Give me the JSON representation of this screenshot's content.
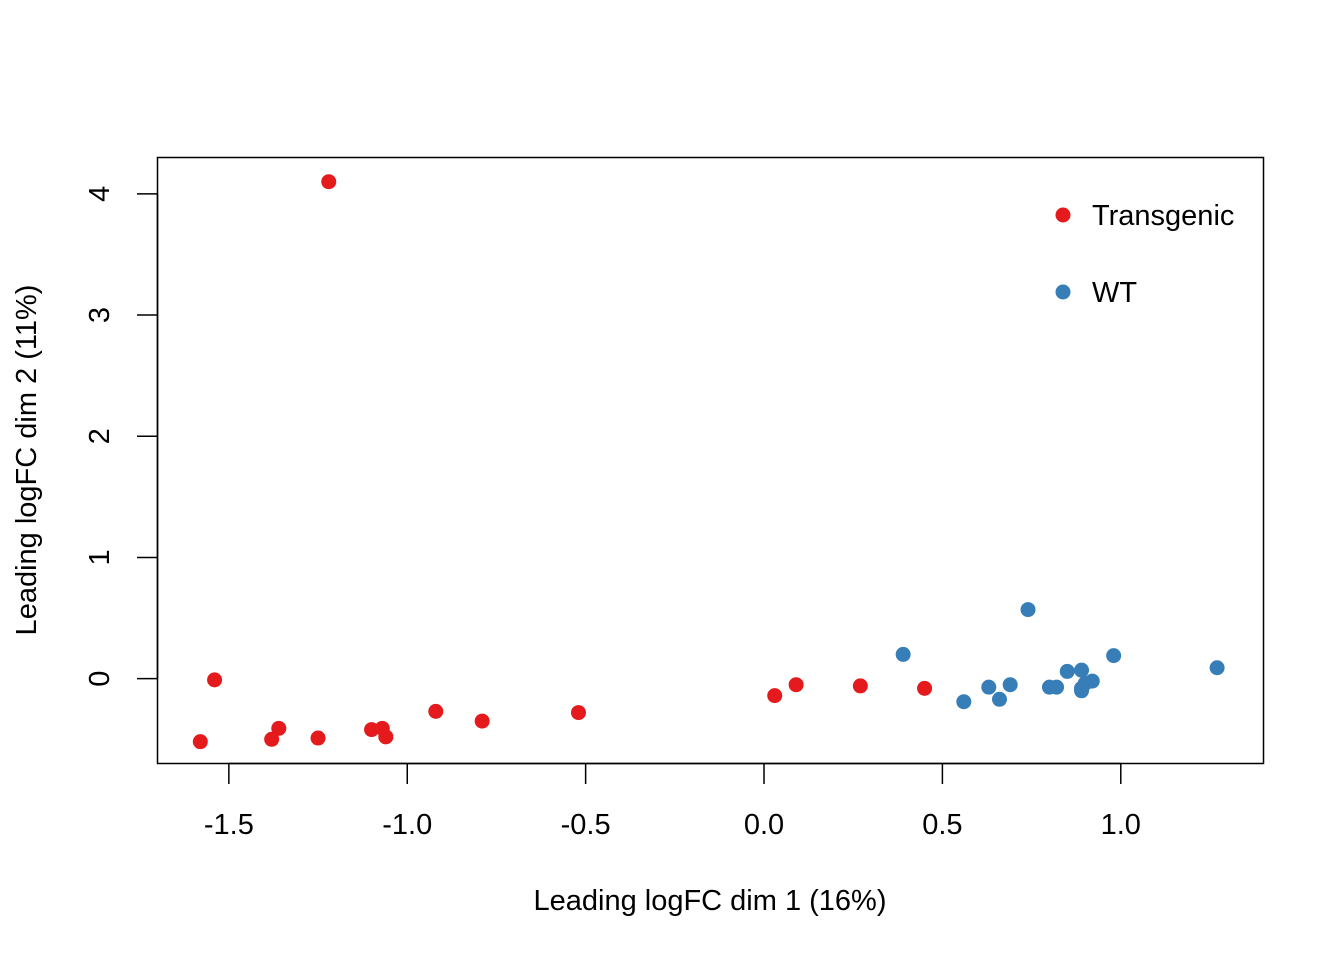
{
  "chart_data": {
    "type": "scatter",
    "title": "",
    "xlabel": "Leading logFC dim 1 (16%)",
    "ylabel": "Leading logFC dim 2 (11%)",
    "xlim": [
      -1.7,
      1.4
    ],
    "ylim": [
      -0.7,
      4.3
    ],
    "x_ticks": [
      -1.5,
      -1.0,
      -0.5,
      0.0,
      0.5,
      1.0
    ],
    "x_tick_labels": [
      "-1.5",
      "-1.0",
      "-0.5",
      "0.0",
      "0.5",
      "1.0"
    ],
    "y_ticks": [
      0,
      1,
      2,
      3,
      4
    ],
    "y_tick_labels": [
      "0",
      "1",
      "2",
      "3",
      "4"
    ],
    "grid": false,
    "legend_position": "top-right",
    "series": [
      {
        "name": "Transgenic",
        "color": "#e41a1c",
        "points": [
          {
            "x": -1.22,
            "y": 4.1
          },
          {
            "x": -1.54,
            "y": -0.01
          },
          {
            "x": -1.58,
            "y": -0.52
          },
          {
            "x": -1.38,
            "y": -0.5
          },
          {
            "x": -1.36,
            "y": -0.41
          },
          {
            "x": -1.25,
            "y": -0.49
          },
          {
            "x": -1.1,
            "y": -0.42
          },
          {
            "x": -1.07,
            "y": -0.41
          },
          {
            "x": -1.06,
            "y": -0.48
          },
          {
            "x": -0.92,
            "y": -0.27
          },
          {
            "x": -0.79,
            "y": -0.35
          },
          {
            "x": -0.52,
            "y": -0.28
          },
          {
            "x": 0.03,
            "y": -0.14
          },
          {
            "x": 0.09,
            "y": -0.05
          },
          {
            "x": 0.27,
            "y": -0.06
          },
          {
            "x": 0.45,
            "y": -0.08
          }
        ]
      },
      {
        "name": "WT",
        "color": "#377eb8",
        "points": [
          {
            "x": 0.39,
            "y": 0.2
          },
          {
            "x": 0.74,
            "y": 0.57
          },
          {
            "x": 0.56,
            "y": -0.19
          },
          {
            "x": 0.63,
            "y": -0.07
          },
          {
            "x": 0.66,
            "y": -0.17
          },
          {
            "x": 0.69,
            "y": -0.05
          },
          {
            "x": 0.8,
            "y": -0.07
          },
          {
            "x": 0.82,
            "y": -0.07
          },
          {
            "x": 0.85,
            "y": 0.06
          },
          {
            "x": 0.89,
            "y": 0.07
          },
          {
            "x": 0.89,
            "y": -0.08
          },
          {
            "x": 0.89,
            "y": -0.1
          },
          {
            "x": 0.9,
            "y": -0.04
          },
          {
            "x": 0.92,
            "y": -0.02
          },
          {
            "x": 0.98,
            "y": 0.19
          },
          {
            "x": 1.27,
            "y": 0.09
          }
        ]
      }
    ]
  }
}
